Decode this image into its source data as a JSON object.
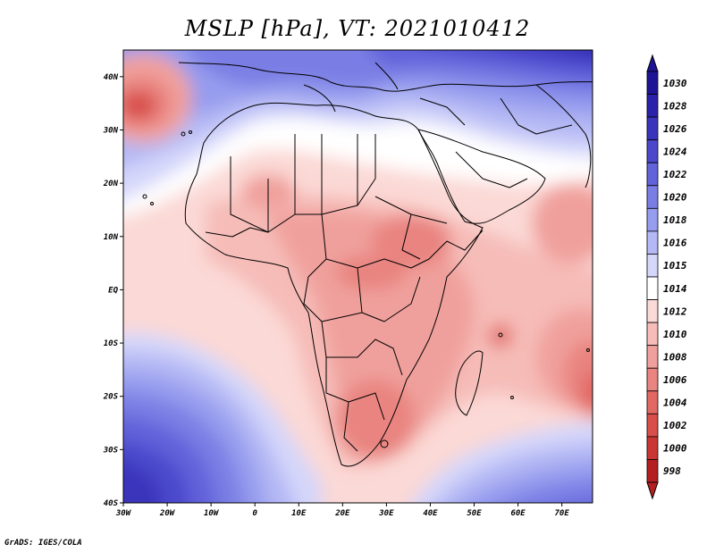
{
  "title": "MSLP [hPa], VT: 2021010412",
  "credit": "GrADS: IGES/COLA",
  "map": {
    "lon_range": [
      -30,
      77
    ],
    "lat_range": [
      -40,
      45
    ],
    "lat_ticks": [
      {
        "value": 40,
        "label": "40N"
      },
      {
        "value": 30,
        "label": "30N"
      },
      {
        "value": 20,
        "label": "20N"
      },
      {
        "value": 10,
        "label": "10N"
      },
      {
        "value": 0,
        "label": "EQ"
      },
      {
        "value": -10,
        "label": "10S"
      },
      {
        "value": -20,
        "label": "20S"
      },
      {
        "value": -30,
        "label": "30S"
      },
      {
        "value": -40,
        "label": "40S"
      }
    ],
    "lon_ticks": [
      {
        "value": -30,
        "label": "30W"
      },
      {
        "value": -20,
        "label": "20W"
      },
      {
        "value": -10,
        "label": "10W"
      },
      {
        "value": 0,
        "label": "0"
      },
      {
        "value": 10,
        "label": "10E"
      },
      {
        "value": 20,
        "label": "20E"
      },
      {
        "value": 30,
        "label": "30E"
      },
      {
        "value": 40,
        "label": "40E"
      },
      {
        "value": 50,
        "label": "50E"
      },
      {
        "value": 60,
        "label": "60E"
      },
      {
        "value": 70,
        "label": "70E"
      }
    ]
  },
  "colorbar": {
    "levels": [
      {
        "label": "1030",
        "color": "#1e1496"
      },
      {
        "label": "1028",
        "color": "#2a22aa"
      },
      {
        "label": "1026",
        "color": "#3a34bc"
      },
      {
        "label": "1024",
        "color": "#4c48cc"
      },
      {
        "label": "1022",
        "color": "#6262da"
      },
      {
        "label": "1020",
        "color": "#7a7ee4"
      },
      {
        "label": "1018",
        "color": "#969cee"
      },
      {
        "label": "1016",
        "color": "#b4b8f4"
      },
      {
        "label": "1015",
        "color": "#d4d6fa"
      },
      {
        "label": "1014",
        "color": "#ffffff"
      },
      {
        "label": "1012",
        "color": "#fbd9d6"
      },
      {
        "label": "1010",
        "color": "#f6bcb8"
      },
      {
        "label": "1008",
        "color": "#f0a09c"
      },
      {
        "label": "1006",
        "color": "#e98480"
      },
      {
        "label": "1004",
        "color": "#e26864"
      },
      {
        "label": "1002",
        "color": "#d84e4a"
      },
      {
        "label": "1000",
        "color": "#c93634"
      },
      {
        "label": "998",
        "color": "#b42022"
      }
    ]
  }
}
